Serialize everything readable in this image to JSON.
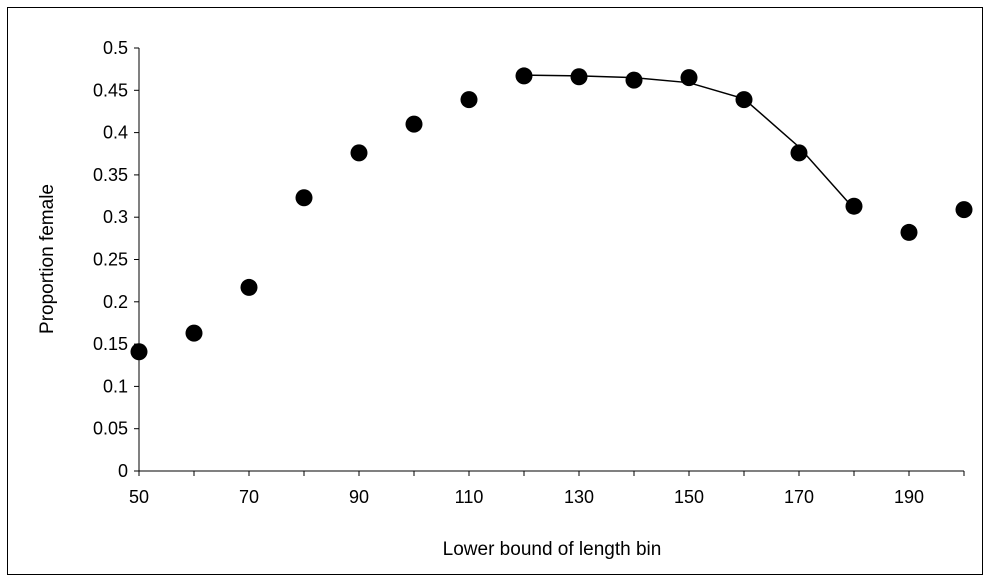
{
  "chart_data": {
    "type": "scatter",
    "xlabel": "Lower bound of length bin",
    "ylabel": "Proportion female",
    "xlim": [
      50,
      200
    ],
    "ylim": [
      0,
      0.5
    ],
    "x_ticks": [
      50,
      70,
      90,
      110,
      130,
      150,
      170,
      190
    ],
    "x_tick_labels": [
      "50",
      "70",
      "90",
      "110",
      "130",
      "150",
      "170",
      "190"
    ],
    "y_ticks": [
      0,
      0.05,
      0.1,
      0.15,
      0.2,
      0.25,
      0.3,
      0.35,
      0.4,
      0.45,
      0.5
    ],
    "y_tick_labels": [
      "0",
      "0.05",
      "0.1",
      "0.15",
      "0.2",
      "0.25",
      "0.3",
      "0.35",
      "0.4",
      "0.45",
      "0.5"
    ],
    "grid": false,
    "series": [
      {
        "kind": "points",
        "color": "#000000",
        "x": [
          50,
          60,
          70,
          80,
          90,
          100,
          110,
          120,
          130,
          140,
          150,
          160,
          170,
          180,
          190,
          200
        ],
        "y": [
          0.141,
          0.163,
          0.217,
          0.323,
          0.376,
          0.41,
          0.439,
          0.467,
          0.466,
          0.462,
          0.465,
          0.439,
          0.376,
          0.313,
          0.282,
          0.309
        ]
      },
      {
        "kind": "line",
        "color": "#000000",
        "x": [
          120,
          130,
          140,
          150,
          160,
          170,
          180
        ],
        "y": [
          0.468,
          0.467,
          0.465,
          0.459,
          0.44,
          0.383,
          0.31
        ]
      }
    ]
  }
}
